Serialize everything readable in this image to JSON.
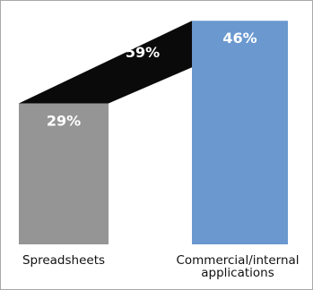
{
  "chart_data": {
    "type": "bar",
    "categories": [
      "Spreadsheets",
      "Commercial/internal applications"
    ],
    "category_label_lines": [
      [
        "Spreadsheets"
      ],
      [
        "Commercial/internal",
        "applications"
      ]
    ],
    "values": [
      29,
      46
    ],
    "value_labels": [
      "29%",
      "46%"
    ],
    "connector": {
      "value_label": "59%"
    },
    "title": "",
    "xlabel": "",
    "ylabel": "",
    "grid": false,
    "legend": "none",
    "colors": {
      "bar_left": "#959595",
      "bar_right": "#6a98cf",
      "connector": "#0a0a0a",
      "label_text": "#ffffff"
    }
  }
}
